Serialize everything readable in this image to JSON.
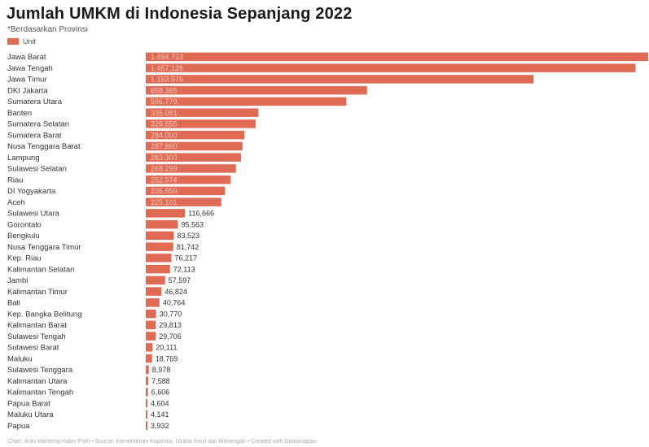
{
  "colors": {
    "bar": "#E06B55",
    "bar_label_inside": "#f6c7bd",
    "label": "#333333"
  },
  "chart_data": {
    "type": "bar",
    "orientation": "horizontal",
    "title": "Jumlah UMKM di Indonesia Sepanjang 2022",
    "subtitle": "*Berdasarkan Provinsi",
    "legend": [
      "Unit"
    ],
    "categories": [
      "Jawa Barat",
      "Jawa Tengah",
      "Jawa Timur",
      "DKI Jakarta",
      "Sumatera Utara",
      "Banten",
      "Sumatera Selatan",
      "Sumatera Barat",
      "Nusa Tenggara Barat",
      "Lampung",
      "Sulawesi Selatan",
      "Riau",
      "DI Yogyakarta",
      "Aceh",
      "Sulawesi Utara",
      "Gorontalo",
      "Bengkulu",
      "Nusa Tenggara Timur",
      "Kep. Riau",
      "Kalimantan Selatan",
      "Jambi",
      "Kalimantan Timur",
      "Bali",
      "Kep. Bangka Belitung",
      "Kalimantan Barat",
      "Sulawesi Tengah",
      "Sulawesi Barat",
      "Maluku",
      "Sulawesi Tenggara",
      "Kalimantan Utara",
      "Kalimantan Tengah",
      "Papua Barat",
      "Maluku Utara",
      "Papua"
    ],
    "series": [
      {
        "name": "Unit",
        "values": [
          1494723,
          1457126,
          1153576,
          658365,
          596779,
          335081,
          326655,
          294000,
          287860,
          283300,
          268299,
          252574,
          235859,
          225101,
          116666,
          95563,
          83523,
          81742,
          76217,
          72113,
          57597,
          46824,
          40764,
          30770,
          29813,
          29706,
          20111,
          18769,
          8978,
          7588,
          6606,
          4604,
          4141,
          3932
        ],
        "labels": [
          "1.494.723",
          "1.457.126",
          "1.153.576",
          "658.365",
          "596.779",
          "335.081",
          "326.655",
          "294.000",
          "287.860",
          "283.300",
          "268.299",
          "252.574",
          "235.859",
          "225.101",
          "116,666",
          "95,563",
          "83,523",
          "81,742",
          "76,217",
          "72,113",
          "57,597",
          "46,824",
          "40,764",
          "30,770",
          "29,813",
          "29,706",
          "20,111",
          "18,769",
          "8,978",
          "7,588",
          "6,606",
          "4,604",
          "4,141",
          "3,932"
        ]
      }
    ],
    "xlim": [
      0,
      1494723
    ],
    "grid": false,
    "legend_position": "top-left"
  },
  "footer": "Chart: Ardo Martoma Halim Putri • Source: Kementerian Koperasi, Usaha Kecil dan Menengah • Created with Datawrapper"
}
